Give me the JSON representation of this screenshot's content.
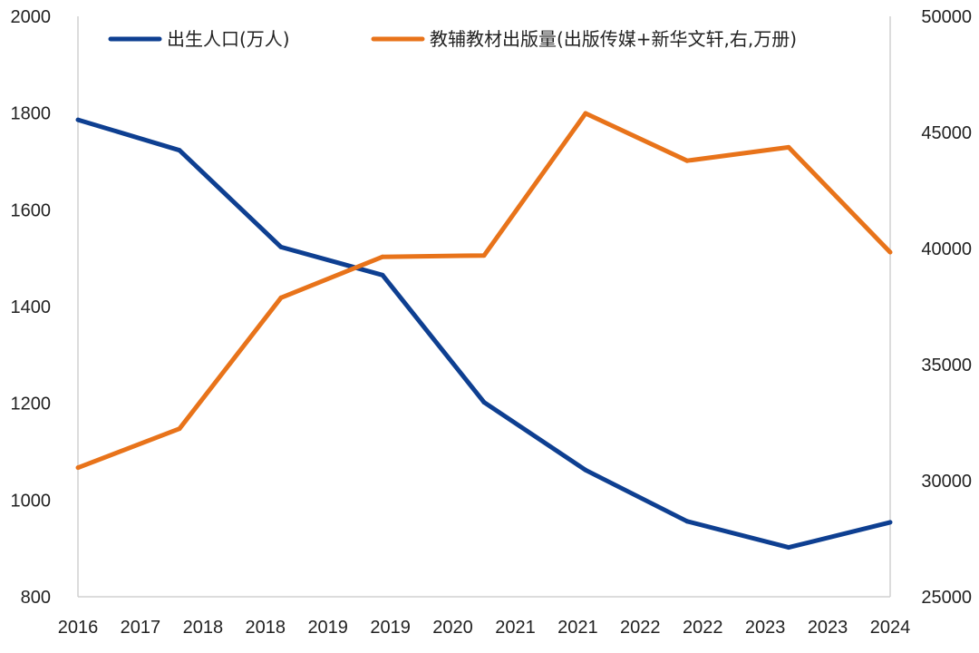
{
  "chart_data": {
    "type": "line",
    "x_tick_labels": [
      "2016",
      "2017",
      "2018",
      "2018",
      "2019",
      "2019",
      "2020",
      "2021",
      "2021",
      "2022",
      "2022",
      "2023",
      "2023",
      "2024"
    ],
    "y_left": {
      "ylim": [
        800,
        2000
      ],
      "ticks": [
        800,
        1000,
        1200,
        1400,
        1600,
        1800,
        2000
      ]
    },
    "y_right": {
      "ylim": [
        25000,
        50000
      ],
      "ticks": [
        25000,
        30000,
        35000,
        40000,
        45000,
        50000
      ]
    },
    "grid": false,
    "legend_position": "top",
    "series": [
      {
        "name": "出生人口(万人)",
        "axis": "left",
        "color": "#0e3f91",
        "points": [
          {
            "x": 0,
            "y": 1786
          },
          {
            "x": 1,
            "y": 1723
          },
          {
            "x": 2,
            "y": 1523
          },
          {
            "x": 3,
            "y": 1465
          },
          {
            "x": 4,
            "y": 1202
          },
          {
            "x": 5,
            "y": 1062
          },
          {
            "x": 6,
            "y": 956
          },
          {
            "x": 7,
            "y": 902
          },
          {
            "x": 8,
            "y": 954
          }
        ]
      },
      {
        "name": "教辅教材出版量(出版传媒+新华文轩,右,万册)",
        "axis": "right",
        "color": "#e8731a",
        "points": [
          {
            "x": 0,
            "y": 30560
          },
          {
            "x": 1,
            "y": 32240
          },
          {
            "x": 2,
            "y": 37880
          },
          {
            "x": 3,
            "y": 39640
          },
          {
            "x": 4,
            "y": 39700
          },
          {
            "x": 5,
            "y": 45820
          },
          {
            "x": 6,
            "y": 43780
          },
          {
            "x": 7,
            "y": 44360
          },
          {
            "x": 8,
            "y": 39840
          }
        ]
      }
    ]
  }
}
